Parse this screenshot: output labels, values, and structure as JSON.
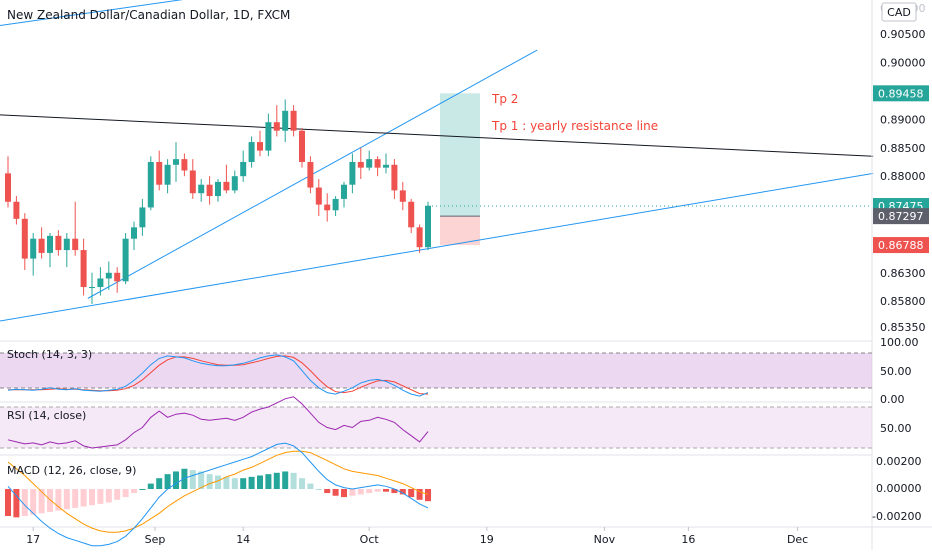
{
  "header": {
    "symbol_title": "New Zealand Dollar/Canadian Dollar, 1D, FXCM",
    "currency_badge": "CAD"
  },
  "colors": {
    "up": "#26a69a",
    "down": "#ef5350",
    "trendline_blue": "#2196f3",
    "resistance_line": "#131722",
    "stoch_k": "#2196f3",
    "stoch_d": "#f44336",
    "rsi": "#9c27b0",
    "macd_line": "#2196f3",
    "macd_signal": "#ff9800",
    "band_fill": "#e1bee7",
    "price_badge_green": "#26a69a",
    "price_badge_gray": "#5d606b",
    "price_badge_red": "#ef5350",
    "annotation_text": "#f44336"
  },
  "annotations": {
    "tp2": "Tp 2",
    "tp1": "Tp 1 : yearly resistance line"
  },
  "price_badges": [
    {
      "label": "0.89458",
      "kind": "green"
    },
    {
      "label": "0.87475",
      "kind": "green"
    },
    {
      "label": "0.87297",
      "kind": "gray"
    },
    {
      "label": "0.86788",
      "kind": "red"
    }
  ],
  "price_axis_ticks": [
    "0.90500",
    "0.90000",
    "0.89000",
    "0.88500",
    "0.88000",
    "0.86300",
    "0.85800",
    "0.85350"
  ],
  "time_axis_ticks": [
    "17",
    "Sep",
    "14",
    "Oct",
    "19",
    "Nov",
    "16",
    "Dec"
  ],
  "panels": {
    "stoch": {
      "label": "Stoch (14, 3, 3)",
      "ticks": [
        "100.00",
        "50.00",
        "0.00"
      ]
    },
    "rsi": {
      "label": "RSI (14, close)",
      "ticks": [
        "50.00"
      ]
    },
    "macd": {
      "label": "MACD (12, 26, close, 9)",
      "ticks": [
        "0.00200",
        "0.00000",
        "-0.00200"
      ]
    }
  },
  "chart_data": {
    "type": "candlestick",
    "title": "New Zealand Dollar/Canadian Dollar, 1D, FXCM",
    "y_range": [
      0.851,
      0.911
    ],
    "last_price": 0.87475,
    "trade_setup": {
      "take_profit": 0.89458,
      "entry": 0.87297,
      "stop": 0.86788
    },
    "candles": [
      {
        "o": 0.8805,
        "h": 0.8835,
        "l": 0.8745,
        "c": 0.8755
      },
      {
        "o": 0.8755,
        "h": 0.8765,
        "l": 0.8715,
        "c": 0.8725
      },
      {
        "o": 0.8725,
        "h": 0.8735,
        "l": 0.8635,
        "c": 0.8655
      },
      {
        "o": 0.8655,
        "h": 0.87,
        "l": 0.8625,
        "c": 0.869
      },
      {
        "o": 0.869,
        "h": 0.871,
        "l": 0.8655,
        "c": 0.8665
      },
      {
        "o": 0.8665,
        "h": 0.87,
        "l": 0.864,
        "c": 0.8695
      },
      {
        "o": 0.8695,
        "h": 0.8705,
        "l": 0.866,
        "c": 0.867
      },
      {
        "o": 0.867,
        "h": 0.87,
        "l": 0.864,
        "c": 0.869
      },
      {
        "o": 0.869,
        "h": 0.8755,
        "l": 0.866,
        "c": 0.867
      },
      {
        "o": 0.867,
        "h": 0.869,
        "l": 0.859,
        "c": 0.8605
      },
      {
        "o": 0.8605,
        "h": 0.863,
        "l": 0.8575,
        "c": 0.8605
      },
      {
        "o": 0.8605,
        "h": 0.864,
        "l": 0.859,
        "c": 0.862
      },
      {
        "o": 0.862,
        "h": 0.865,
        "l": 0.86,
        "c": 0.863
      },
      {
        "o": 0.863,
        "h": 0.864,
        "l": 0.8595,
        "c": 0.8615
      },
      {
        "o": 0.8615,
        "h": 0.87,
        "l": 0.861,
        "c": 0.869
      },
      {
        "o": 0.869,
        "h": 0.872,
        "l": 0.867,
        "c": 0.871
      },
      {
        "o": 0.871,
        "h": 0.876,
        "l": 0.8695,
        "c": 0.8745
      },
      {
        "o": 0.8745,
        "h": 0.8835,
        "l": 0.874,
        "c": 0.8825
      },
      {
        "o": 0.8825,
        "h": 0.8845,
        "l": 0.8775,
        "c": 0.8785
      },
      {
        "o": 0.8785,
        "h": 0.883,
        "l": 0.877,
        "c": 0.882
      },
      {
        "o": 0.882,
        "h": 0.886,
        "l": 0.879,
        "c": 0.883
      },
      {
        "o": 0.883,
        "h": 0.884,
        "l": 0.88,
        "c": 0.881
      },
      {
        "o": 0.881,
        "h": 0.883,
        "l": 0.876,
        "c": 0.877
      },
      {
        "o": 0.877,
        "h": 0.8795,
        "l": 0.8755,
        "c": 0.8785
      },
      {
        "o": 0.8785,
        "h": 0.88,
        "l": 0.875,
        "c": 0.8765
      },
      {
        "o": 0.8765,
        "h": 0.8795,
        "l": 0.8755,
        "c": 0.879
      },
      {
        "o": 0.879,
        "h": 0.882,
        "l": 0.877,
        "c": 0.8775
      },
      {
        "o": 0.8775,
        "h": 0.881,
        "l": 0.877,
        "c": 0.88
      },
      {
        "o": 0.88,
        "h": 0.8845,
        "l": 0.879,
        "c": 0.8825
      },
      {
        "o": 0.8825,
        "h": 0.887,
        "l": 0.8815,
        "c": 0.886
      },
      {
        "o": 0.886,
        "h": 0.888,
        "l": 0.8835,
        "c": 0.8845
      },
      {
        "o": 0.8845,
        "h": 0.891,
        "l": 0.8835,
        "c": 0.8895
      },
      {
        "o": 0.8895,
        "h": 0.8925,
        "l": 0.887,
        "c": 0.888
      },
      {
        "o": 0.888,
        "h": 0.8935,
        "l": 0.886,
        "c": 0.8915
      },
      {
        "o": 0.8915,
        "h": 0.8925,
        "l": 0.887,
        "c": 0.888
      },
      {
        "o": 0.888,
        "h": 0.8885,
        "l": 0.8815,
        "c": 0.8825
      },
      {
        "o": 0.8825,
        "h": 0.8835,
        "l": 0.877,
        "c": 0.878
      },
      {
        "o": 0.878,
        "h": 0.8795,
        "l": 0.873,
        "c": 0.875
      },
      {
        "o": 0.875,
        "h": 0.877,
        "l": 0.872,
        "c": 0.874
      },
      {
        "o": 0.874,
        "h": 0.8765,
        "l": 0.873,
        "c": 0.876
      },
      {
        "o": 0.876,
        "h": 0.879,
        "l": 0.8745,
        "c": 0.8785
      },
      {
        "o": 0.8785,
        "h": 0.884,
        "l": 0.877,
        "c": 0.8825
      },
      {
        "o": 0.8825,
        "h": 0.885,
        "l": 0.8795,
        "c": 0.8815
      },
      {
        "o": 0.8815,
        "h": 0.8845,
        "l": 0.881,
        "c": 0.883
      },
      {
        "o": 0.883,
        "h": 0.8835,
        "l": 0.88,
        "c": 0.8815
      },
      {
        "o": 0.8815,
        "h": 0.884,
        "l": 0.8805,
        "c": 0.882
      },
      {
        "o": 0.882,
        "h": 0.883,
        "l": 0.876,
        "c": 0.8775
      },
      {
        "o": 0.8775,
        "h": 0.879,
        "l": 0.874,
        "c": 0.8755
      },
      {
        "o": 0.8755,
        "h": 0.876,
        "l": 0.87,
        "c": 0.871
      },
      {
        "o": 0.871,
        "h": 0.8715,
        "l": 0.8665,
        "c": 0.8675
      },
      {
        "o": 0.8675,
        "h": 0.8755,
        "l": 0.867,
        "c": 0.8748
      }
    ],
    "stoch_k": [
      20,
      22,
      21,
      20,
      22,
      25,
      22,
      21,
      23,
      20,
      19,
      18,
      20,
      22,
      28,
      40,
      55,
      72,
      85,
      90,
      88,
      86,
      80,
      75,
      72,
      70,
      70,
      72,
      75,
      80,
      86,
      90,
      92,
      88,
      80,
      60,
      40,
      25,
      15,
      12,
      18,
      25,
      35,
      40,
      42,
      38,
      30,
      20,
      12,
      8,
      15
    ],
    "stoch_d": [
      21,
      21,
      21,
      21,
      21,
      22,
      23,
      22,
      22,
      21,
      20,
      19,
      19,
      20,
      23,
      30,
      41,
      56,
      71,
      82,
      88,
      88,
      85,
      80,
      76,
      72,
      71,
      71,
      72,
      76,
      80,
      85,
      89,
      90,
      87,
      76,
      60,
      42,
      27,
      17,
      15,
      18,
      26,
      33,
      39,
      40,
      37,
      29,
      21,
      13,
      12
    ],
    "rsi": [
      38,
      36,
      34,
      35,
      33,
      36,
      34,
      35,
      37,
      32,
      30,
      31,
      32,
      33,
      38,
      45,
      50,
      60,
      66,
      60,
      63,
      64,
      62,
      58,
      57,
      58,
      59,
      57,
      60,
      65,
      68,
      70,
      74,
      78,
      80,
      73,
      64,
      55,
      50,
      48,
      52,
      50,
      56,
      57,
      60,
      58,
      55,
      48,
      42,
      36,
      46
    ],
    "macd_hist": [
      -0.002,
      -0.0021,
      -0.002,
      -0.0019,
      -0.0018,
      -0.0017,
      -0.0016,
      -0.0015,
      -0.0014,
      -0.0013,
      -0.0012,
      -0.0011,
      -0.001,
      -0.0008,
      -0.0006,
      -0.0003,
      0.0,
      0.0004,
      0.0008,
      0.0011,
      0.0013,
      0.0015,
      0.0014,
      0.0013,
      0.0011,
      0.001,
      0.0009,
      0.0008,
      0.0008,
      0.0009,
      0.001,
      0.0011,
      0.0012,
      0.0013,
      0.0012,
      0.0008,
      0.0004,
      0.0,
      -0.0003,
      -0.0005,
      -0.0006,
      -0.0005,
      -0.0004,
      -0.0003,
      -0.0002,
      -0.0002,
      -0.0003,
      -0.0004,
      -0.0006,
      -0.0008,
      -0.0009
    ],
    "macd_line": [
      0.0002,
      -0.0005,
      -0.0012,
      -0.0018,
      -0.0024,
      -0.0029,
      -0.0033,
      -0.0036,
      -0.0038,
      -0.004,
      -0.0042,
      -0.0042,
      -0.0041,
      -0.0039,
      -0.0035,
      -0.0029,
      -0.0022,
      -0.0014,
      -0.0006,
      0.0,
      0.0004,
      0.0008,
      0.001,
      0.0012,
      0.0014,
      0.0016,
      0.0018,
      0.002,
      0.0022,
      0.0024,
      0.0027,
      0.003,
      0.0033,
      0.0034,
      0.0032,
      0.0027,
      0.002,
      0.0013,
      0.0007,
      0.0003,
      0.0001,
      0.0,
      0.0001,
      0.0002,
      0.0003,
      0.0002,
      0.0,
      -0.0003,
      -0.0007,
      -0.0011,
      -0.0014
    ],
    "macd_signal": [
      0.002,
      0.0015,
      0.001,
      0.0004,
      -0.0002,
      -0.0008,
      -0.0013,
      -0.0018,
      -0.0022,
      -0.0026,
      -0.0029,
      -0.0031,
      -0.0032,
      -0.0032,
      -0.0031,
      -0.0029,
      -0.0026,
      -0.0022,
      -0.0018,
      -0.0013,
      -0.0009,
      -0.0005,
      -0.0002,
      0.0001,
      0.0004,
      0.0006,
      0.0009,
      0.0011,
      0.0014,
      0.0016,
      0.0019,
      0.0022,
      0.0025,
      0.0027,
      0.0028,
      0.0028,
      0.0027,
      0.0024,
      0.0021,
      0.0018,
      0.0015,
      0.0013,
      0.0012,
      0.0011,
      0.001,
      0.0008,
      0.0006,
      0.0004,
      0.0001,
      -0.0002,
      -0.0004
    ]
  }
}
